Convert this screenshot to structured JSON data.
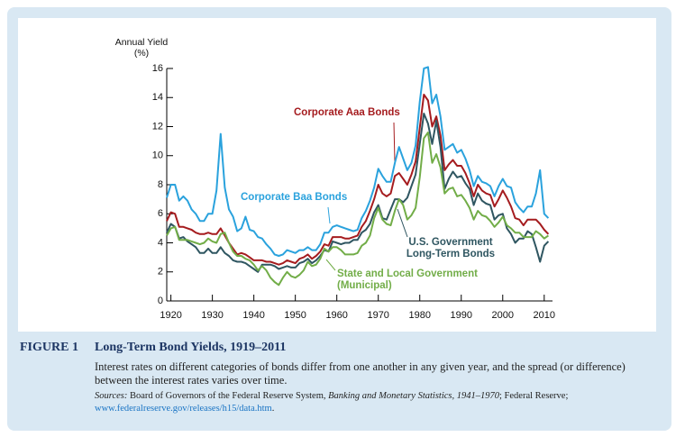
{
  "chart_data": {
    "type": "line",
    "y_axis_label": "Annual Yield (%)",
    "x": [
      1919,
      1920,
      1921,
      1922,
      1923,
      1924,
      1925,
      1926,
      1927,
      1928,
      1929,
      1930,
      1931,
      1932,
      1933,
      1934,
      1935,
      1936,
      1937,
      1938,
      1939,
      1940,
      1941,
      1942,
      1943,
      1944,
      1945,
      1946,
      1947,
      1948,
      1949,
      1950,
      1951,
      1952,
      1953,
      1954,
      1955,
      1956,
      1957,
      1958,
      1959,
      1960,
      1961,
      1962,
      1963,
      1964,
      1965,
      1966,
      1967,
      1968,
      1969,
      1970,
      1971,
      1972,
      1973,
      1974,
      1975,
      1976,
      1977,
      1978,
      1979,
      1980,
      1981,
      1982,
      1983,
      1984,
      1985,
      1986,
      1987,
      1988,
      1989,
      1990,
      1991,
      1992,
      1993,
      1994,
      1995,
      1996,
      1997,
      1998,
      1999,
      2000,
      2001,
      2002,
      2003,
      2004,
      2005,
      2006,
      2007,
      2008,
      2009,
      2010,
      2011
    ],
    "series": [
      {
        "name": "Corporate Baa Bonds",
        "color": "#2aa2dd",
        "values": [
          7.1,
          8.0,
          8.0,
          6.9,
          7.2,
          6.9,
          6.3,
          6.0,
          5.5,
          5.5,
          6.0,
          6.0,
          7.6,
          11.5,
          7.8,
          6.3,
          5.8,
          4.8,
          5.0,
          5.8,
          4.9,
          4.8,
          4.4,
          4.3,
          3.9,
          3.6,
          3.2,
          3.1,
          3.2,
          3.5,
          3.4,
          3.3,
          3.5,
          3.5,
          3.7,
          3.5,
          3.5,
          3.9,
          4.7,
          4.7,
          5.1,
          5.2,
          5.1,
          5.0,
          4.9,
          4.8,
          4.9,
          5.7,
          6.2,
          6.9,
          7.8,
          9.1,
          8.6,
          8.2,
          8.2,
          9.5,
          10.6,
          9.8,
          9.0,
          9.5,
          10.7,
          13.7,
          16.0,
          16.1,
          13.6,
          14.2,
          12.7,
          10.4,
          10.6,
          10.8,
          10.2,
          10.4,
          9.8,
          9.0,
          7.9,
          8.6,
          8.2,
          8.1,
          7.9,
          7.2,
          7.9,
          8.4,
          7.9,
          7.8,
          6.8,
          6.4,
          6.1,
          6.5,
          6.5,
          7.4,
          9.0,
          6.0,
          5.7
        ]
      },
      {
        "name": "Corporate Aaa Bonds",
        "color": "#a51c1f",
        "values": [
          5.5,
          6.1,
          6.0,
          5.1,
          5.1,
          5.0,
          4.9,
          4.7,
          4.6,
          4.6,
          4.7,
          4.6,
          4.6,
          5.0,
          4.5,
          4.0,
          3.6,
          3.2,
          3.3,
          3.2,
          3.0,
          2.8,
          2.8,
          2.8,
          2.7,
          2.7,
          2.6,
          2.5,
          2.6,
          2.8,
          2.7,
          2.6,
          2.9,
          3.0,
          3.2,
          2.9,
          3.1,
          3.4,
          3.9,
          3.8,
          4.4,
          4.4,
          4.4,
          4.3,
          4.3,
          4.4,
          4.5,
          5.1,
          5.5,
          6.2,
          7.0,
          8.0,
          7.4,
          7.2,
          7.4,
          8.6,
          8.8,
          8.4,
          8.0,
          8.7,
          9.6,
          11.9,
          14.2,
          13.8,
          12.0,
          12.7,
          11.4,
          9.0,
          9.4,
          9.7,
          9.3,
          9.3,
          8.8,
          8.1,
          7.2,
          8.0,
          7.6,
          7.4,
          7.3,
          6.5,
          7.0,
          7.6,
          7.1,
          6.5,
          5.7,
          5.6,
          5.2,
          5.6,
          5.6,
          5.6,
          5.3,
          4.9,
          4.6
        ]
      },
      {
        "name": "U.S. Government Long-Term Bonds",
        "color": "#2f5661",
        "values": [
          4.7,
          5.3,
          5.1,
          4.3,
          4.4,
          4.1,
          3.9,
          3.7,
          3.3,
          3.3,
          3.6,
          3.3,
          3.3,
          3.7,
          3.3,
          3.1,
          2.8,
          2.7,
          2.7,
          2.6,
          2.4,
          2.2,
          2.0,
          2.5,
          2.5,
          2.5,
          2.4,
          2.2,
          2.3,
          2.4,
          2.3,
          2.3,
          2.6,
          2.7,
          2.9,
          2.6,
          2.8,
          3.1,
          3.5,
          3.4,
          4.1,
          4.0,
          3.9,
          4.0,
          4.0,
          4.2,
          4.2,
          4.7,
          4.9,
          5.3,
          6.1,
          6.6,
          5.7,
          5.6,
          6.3,
          7.0,
          7.0,
          6.8,
          7.1,
          7.9,
          8.7,
          10.8,
          12.9,
          12.2,
          10.8,
          12.4,
          10.6,
          7.7,
          8.4,
          8.9,
          8.5,
          8.6,
          8.1,
          7.7,
          6.6,
          7.4,
          6.9,
          6.7,
          6.6,
          5.6,
          5.9,
          6.0,
          5.0,
          4.6,
          4.0,
          4.3,
          4.3,
          4.8,
          4.6,
          3.7,
          2.7,
          3.8,
          4.1
        ]
      },
      {
        "name": "State and Local Government (Municipal)",
        "color": "#72ad48",
        "values": [
          4.5,
          5.0,
          5.1,
          4.2,
          4.2,
          4.2,
          4.1,
          4.0,
          3.9,
          4.0,
          4.3,
          4.1,
          4.0,
          4.6,
          4.7,
          4.0,
          3.4,
          3.1,
          3.1,
          2.9,
          2.8,
          2.5,
          2.1,
          2.4,
          2.1,
          1.6,
          1.3,
          1.1,
          1.6,
          2.0,
          1.7,
          1.6,
          1.8,
          2.1,
          2.7,
          2.4,
          2.5,
          2.9,
          3.6,
          3.4,
          3.7,
          3.7,
          3.5,
          3.2,
          3.2,
          3.2,
          3.3,
          3.8,
          4.0,
          4.5,
          5.7,
          6.4,
          5.6,
          5.3,
          5.2,
          6.2,
          7.0,
          6.6,
          5.6,
          5.9,
          6.4,
          8.5,
          11.2,
          11.6,
          9.5,
          10.1,
          9.2,
          7.4,
          7.7,
          7.8,
          7.2,
          7.3,
          6.9,
          6.4,
          5.6,
          6.2,
          5.9,
          5.8,
          5.5,
          5.1,
          5.4,
          5.8,
          5.2,
          5.0,
          4.7,
          4.7,
          4.4,
          4.4,
          4.4,
          4.8,
          4.6,
          4.3,
          4.5
        ]
      }
    ],
    "xlim": [
      1919,
      2012
    ],
    "xticks": [
      1920,
      1930,
      1940,
      1950,
      1960,
      1970,
      1980,
      1990,
      2000,
      2010
    ],
    "ylim": [
      0,
      16
    ],
    "yticks": [
      0,
      2,
      4,
      6,
      8,
      10,
      12,
      14,
      16
    ],
    "grid": false
  },
  "figure": {
    "label": "FIGURE 1",
    "title": "Long-Term Bond Yields, 1919–2011",
    "text": "Interest rates on different categories of bonds differ from one another in any given year, and the spread (or difference) between the interest rates varies over time.",
    "sources": [
      "Sources:",
      "Board of Governors of the Federal Reserve System,",
      "Banking and Monetary Statistics, 1941–1970",
      "; Federal Reserve;",
      "www.federalreserve.gov/releases/h15/data.htm",
      "."
    ]
  }
}
